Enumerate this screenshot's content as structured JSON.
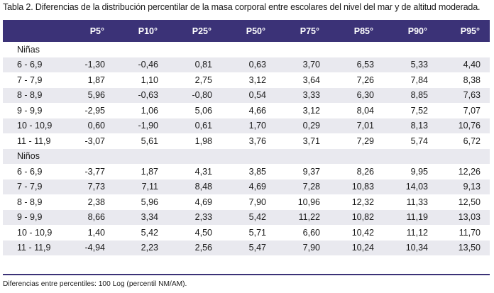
{
  "caption": "Tabla 2. Diferencias de la distribución percentilar de la masa corporal entre escolares del nivel del mar y de altitud moderada.",
  "columns": [
    "",
    "P5°",
    "P10°",
    "P25°",
    "P50°",
    "P75°",
    "P85°",
    "P90°",
    "P95°"
  ],
  "groups": [
    {
      "label": "Niñas",
      "rows": [
        {
          "age": "6 - 6,9",
          "values": [
            "-1,30",
            "-0,46",
            "0,81",
            "0,63",
            "3,70",
            "6,53",
            "5,33",
            "4,40"
          ]
        },
        {
          "age": "7 - 7,9",
          "values": [
            "1,87",
            "1,10",
            "2,75",
            "3,12",
            "3,64",
            "7,26",
            "7,84",
            "8,38"
          ]
        },
        {
          "age": "8 - 8,9",
          "values": [
            "5,96",
            "-0,63",
            "-0,80",
            "0,54",
            "3,33",
            "6,30",
            "8,85",
            "7,63"
          ]
        },
        {
          "age": "9 - 9,9",
          "values": [
            "-2,95",
            "1,06",
            "5,06",
            "4,66",
            "3,12",
            "8,04",
            "7,52",
            "7,07"
          ]
        },
        {
          "age": "10 - 10,9",
          "values": [
            "0,60",
            "-1,90",
            "0,61",
            "1,70",
            "0,29",
            "7,01",
            "8,13",
            "10,76"
          ]
        },
        {
          "age": "11 - 11,9",
          "values": [
            "-3,07",
            "5,61",
            "1,98",
            "3,76",
            "3,71",
            "7,29",
            "5,74",
            "6,72"
          ]
        }
      ]
    },
    {
      "label": "Niños",
      "rows": [
        {
          "age": "6 - 6,9",
          "values": [
            "-3,77",
            "1,87",
            "4,31",
            "3,85",
            "9,37",
            "8,26",
            "9,95",
            "12,26"
          ]
        },
        {
          "age": "7 - 7,9",
          "values": [
            "7,73",
            "7,11",
            "8,48",
            "4,69",
            "7,28",
            "10,83",
            "14,03",
            "9,13"
          ]
        },
        {
          "age": "8 - 8,9",
          "values": [
            "2,38",
            "5,96",
            "4,69",
            "7,90",
            "10,96",
            "12,32",
            "11,33",
            "12,50"
          ]
        },
        {
          "age": "9 - 9,9",
          "values": [
            "8,66",
            "3,34",
            "2,33",
            "5,42",
            "11,22",
            "10,82",
            "11,19",
            "13,03"
          ]
        },
        {
          "age": "10 - 10,9",
          "values": [
            "1,40",
            "5,42",
            "4,50",
            "5,71",
            "6,60",
            "10,42",
            "11,12",
            "11,70"
          ]
        },
        {
          "age": "11 - 11,9",
          "values": [
            "-4,94",
            "2,23",
            "2,56",
            "5,47",
            "7,90",
            "10,24",
            "10,34",
            "13,50"
          ]
        }
      ]
    }
  ],
  "footnote": "Diferencias entre percentiles: 100 Log (percentil NM/AM).",
  "colors": {
    "header_bg": "#3b3277",
    "header_text": "#ffffff",
    "stripe": "#e9e9ef"
  }
}
